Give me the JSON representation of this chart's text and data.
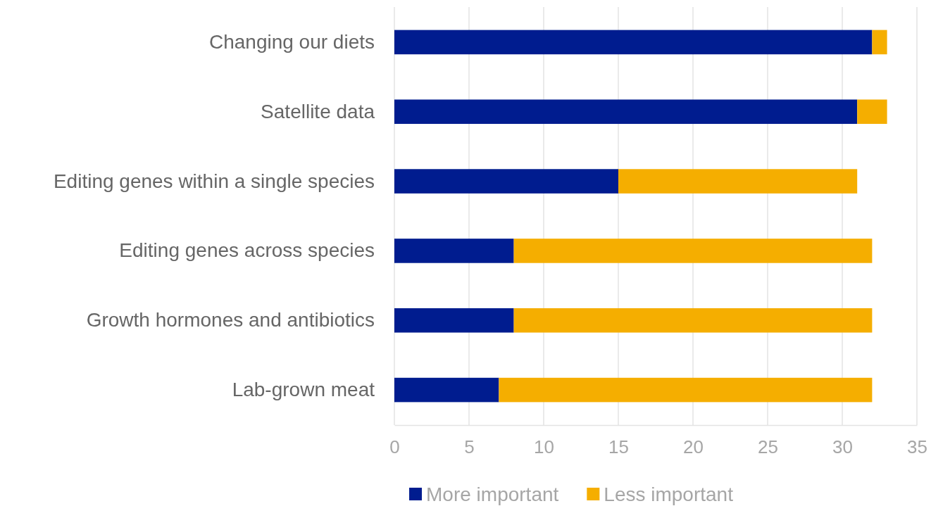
{
  "chart_data": {
    "type": "bar",
    "orientation": "horizontal",
    "stacked": true,
    "categories": [
      "Changing our diets",
      "Satellite data",
      "Editing genes within a single species",
      "Editing genes across species",
      "Growth hormones and antibiotics",
      "Lab-grown meat"
    ],
    "series": [
      {
        "name": "More important",
        "color": "#001c8f",
        "values": [
          32,
          31,
          15,
          8,
          8,
          7
        ]
      },
      {
        "name": "Less important",
        "color": "#f5ae00",
        "values": [
          1,
          2,
          16,
          24,
          24,
          25
        ]
      }
    ],
    "xlim": [
      0,
      35
    ],
    "xticks": [
      0,
      5,
      10,
      15,
      20,
      25,
      30,
      35
    ],
    "grid": "x",
    "legend": "bottom"
  }
}
